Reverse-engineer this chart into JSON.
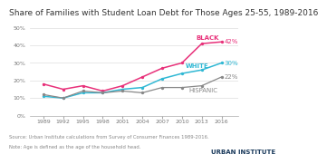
{
  "title": "Share of Families with Student Loan Debt for Those Ages 25-55, 1989-2016",
  "years": [
    1989,
    1992,
    1995,
    1998,
    2001,
    2004,
    2007,
    2010,
    2013,
    2016
  ],
  "black": [
    0.18,
    0.15,
    0.17,
    0.14,
    0.17,
    0.22,
    0.27,
    0.3,
    0.41,
    0.42
  ],
  "white": [
    0.11,
    0.1,
    0.13,
    0.13,
    0.15,
    0.16,
    0.21,
    0.24,
    0.26,
    0.3
  ],
  "hispanic": [
    0.12,
    0.1,
    0.14,
    0.13,
    0.14,
    0.13,
    0.16,
    0.16,
    0.17,
    0.22
  ],
  "black_label": "BLACK",
  "white_label": "WHITE",
  "hispanic_label": "HISPANIC",
  "black_end_label": "42%",
  "white_end_label": "30%",
  "hispanic_end_label": "22%",
  "black_color": "#e8317a",
  "white_color": "#30b8d4",
  "hispanic_color": "#888888",
  "ylim": [
    0,
    0.5
  ],
  "yticks": [
    0,
    0.1,
    0.2,
    0.3,
    0.4,
    0.5
  ],
  "source_text": "Source: Urban Institute calculations from Survey of Consumer Finances 1989-2016.",
  "note_text": "Note: Age is defined as the age of the household head.",
  "footer_text": "URBAN INSTITUTE",
  "bg_color": "#ffffff",
  "grid_color": "#dddddd",
  "title_fontsize": 6.5,
  "label_fontsize": 5.0,
  "tick_fontsize": 4.5,
  "footer_fontsize": 5.0
}
